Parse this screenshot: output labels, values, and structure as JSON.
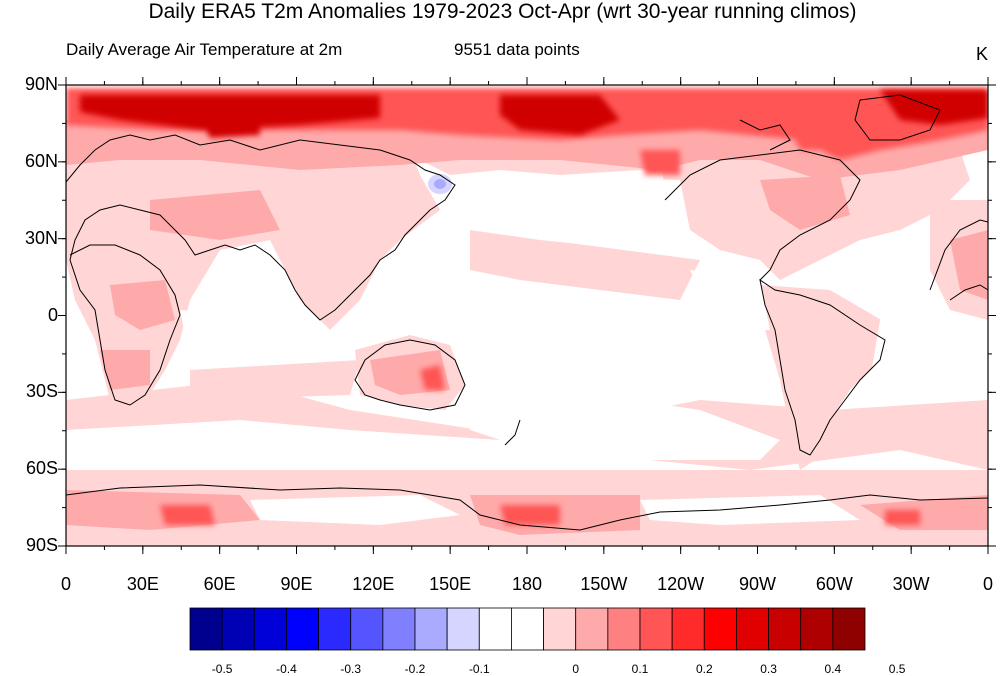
{
  "title": "Daily ERA5 T2m Anomalies 1979-2023 Oct-Apr (wrt 30-year running climos)",
  "subtitle": "Daily Average Air Temperature at 2m",
  "count_label": "9551 data points",
  "units": "K",
  "lat_labels": [
    "90N",
    "60N",
    "30N",
    "0",
    "30S",
    "60S",
    "90S"
  ],
  "lon_labels": [
    "0",
    "30E",
    "60E",
    "90E",
    "120E",
    "150E",
    "180",
    "150W",
    "120W",
    "90W",
    "60W",
    "30W",
    "0"
  ],
  "colorbar": {
    "colors": [
      "#00008f",
      "#0000b4",
      "#0000d8",
      "#0000ff",
      "#2a2aff",
      "#5555ff",
      "#8080ff",
      "#aaaaff",
      "#d5d5ff",
      "#ffffff",
      "#ffffff",
      "#ffd5d5",
      "#ffaaaa",
      "#ff8080",
      "#ff5555",
      "#ff2a2a",
      "#ff0000",
      "#e00000",
      "#c80000",
      "#ae0000",
      "#8f0000"
    ],
    "tick_labels": [
      "-0.5",
      "-0.4",
      "-0.3",
      "-0.2",
      "-0.1",
      "0",
      "0.1",
      "0.2",
      "0.3",
      "0.4",
      "0.5"
    ]
  }
}
